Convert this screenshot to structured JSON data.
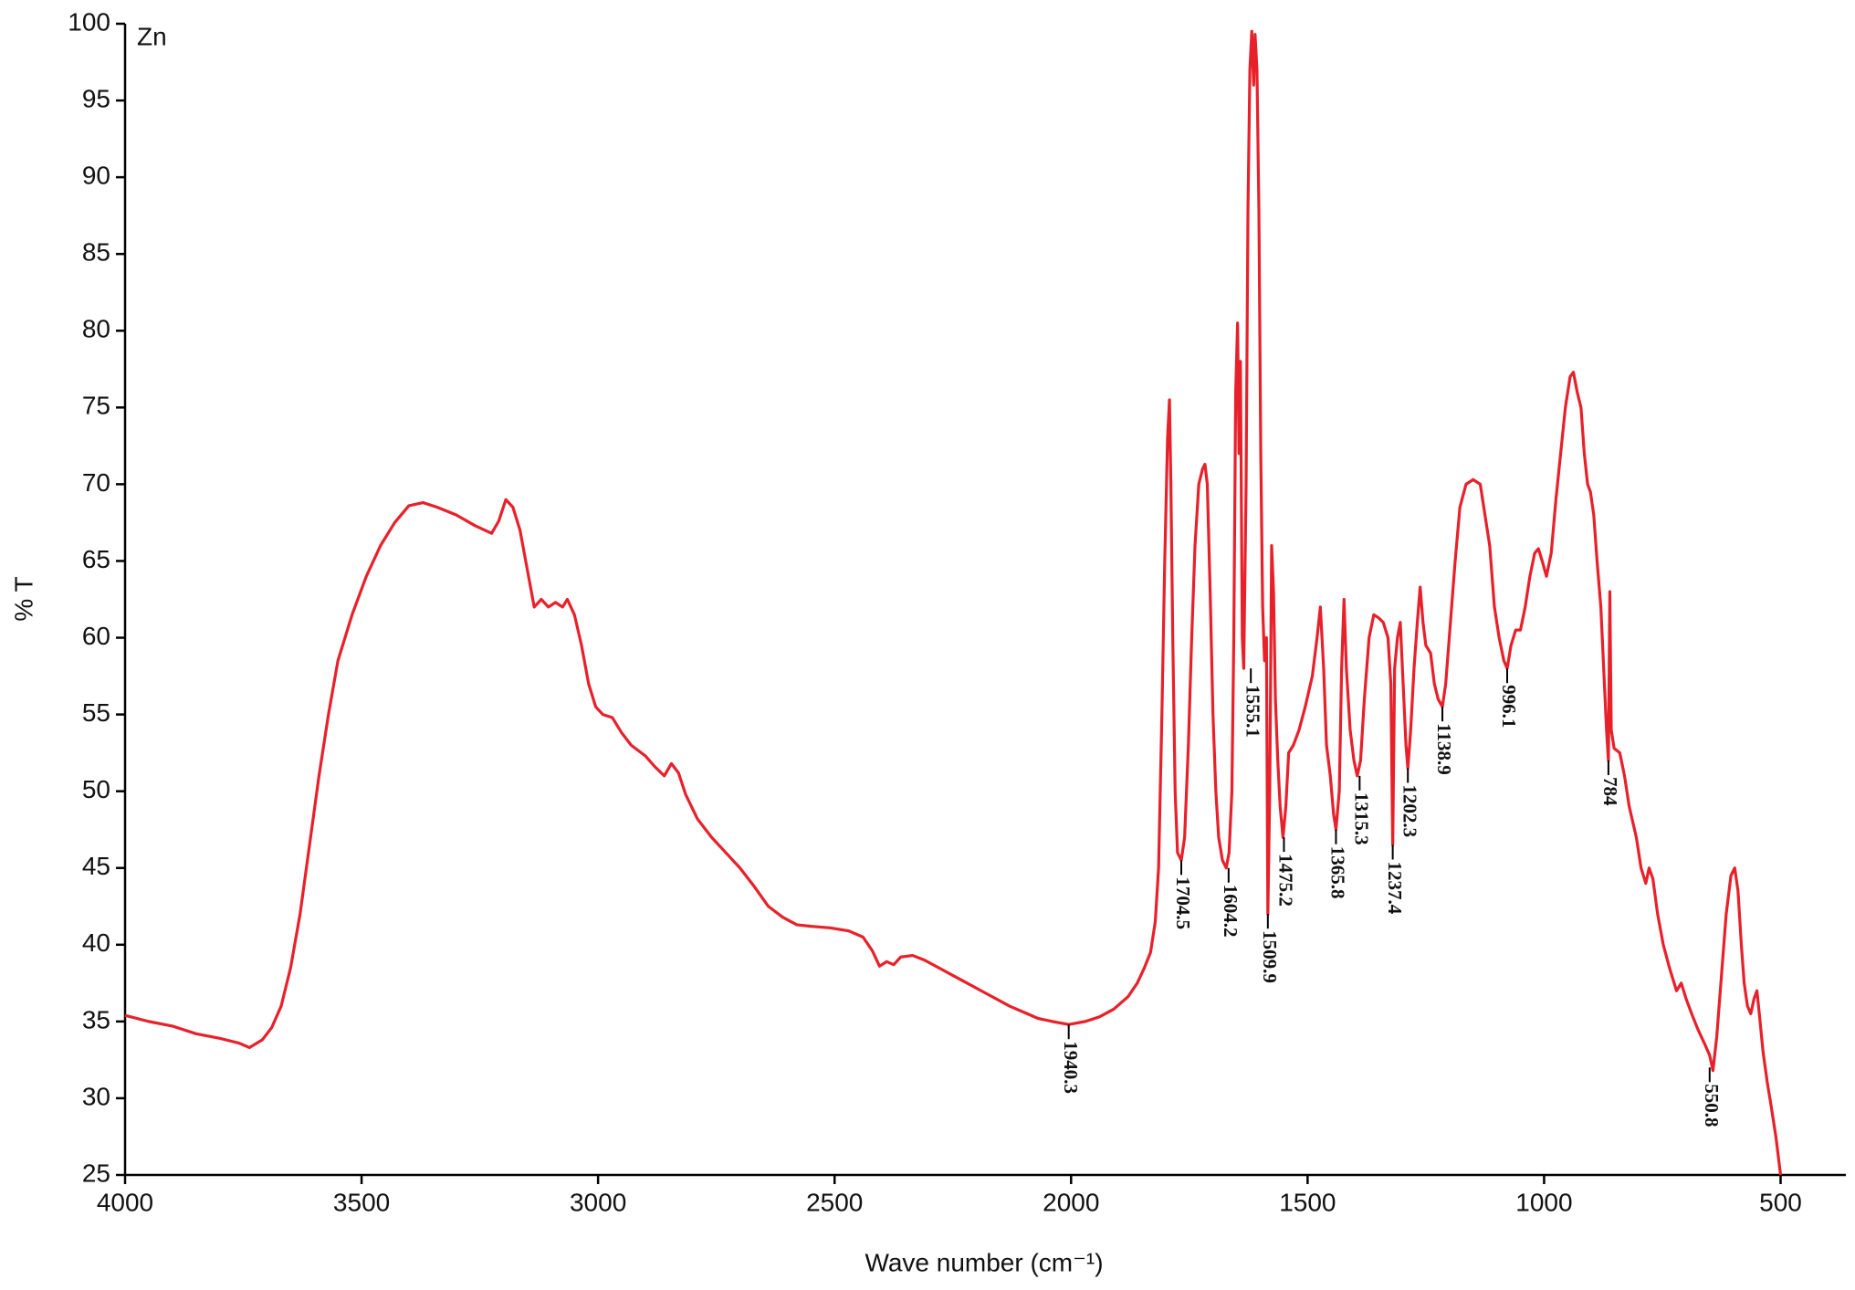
{
  "chart_data": {
    "type": "line",
    "title": "Zn",
    "x_label": "Wave number (cm⁻¹)",
    "y_label": "% T",
    "color": "#e8202a",
    "xlim": [
      4000,
      362
    ],
    "ylim": [
      25,
      100
    ],
    "xticks": [
      4000,
      3500,
      3000,
      2500,
      2000,
      1500,
      1000,
      500
    ],
    "yticks": [
      25,
      30,
      35,
      40,
      45,
      50,
      55,
      60,
      65,
      70,
      75,
      80,
      85,
      90,
      95,
      100
    ],
    "x": [
      4000,
      3950,
      3900,
      3850,
      3800,
      3760,
      3737,
      3710,
      3690,
      3670,
      3650,
      3630,
      3610,
      3590,
      3570,
      3550,
      3520,
      3490,
      3460,
      3430,
      3400,
      3370,
      3340,
      3300,
      3260,
      3225,
      3210,
      3195,
      3180,
      3165,
      3150,
      3135,
      3120,
      3105,
      3090,
      3075,
      3065,
      3050,
      3035,
      3020,
      3005,
      2990,
      2970,
      2950,
      2930,
      2900,
      2880,
      2860,
      2845,
      2830,
      2815,
      2790,
      2760,
      2730,
      2700,
      2670,
      2640,
      2610,
      2580,
      2550,
      2510,
      2470,
      2440,
      2420,
      2405,
      2390,
      2375,
      2360,
      2335,
      2310,
      2280,
      2250,
      2220,
      2190,
      2160,
      2130,
      2100,
      2070,
      2040,
      2005,
      1970,
      1940,
      1910,
      1880,
      1860,
      1845,
      1832,
      1822,
      1815,
      1808,
      1802,
      1796,
      1792,
      1789,
      1785,
      1780,
      1775,
      1767,
      1760,
      1752,
      1745,
      1738,
      1730,
      1722,
      1717,
      1712,
      1706,
      1700,
      1694,
      1688,
      1680,
      1672,
      1666,
      1660,
      1656,
      1652,
      1648,
      1645,
      1642,
      1638,
      1635,
      1630,
      1626,
      1622,
      1618,
      1614,
      1611,
      1607,
      1603,
      1599,
      1595,
      1591,
      1587,
      1584,
      1580,
      1576,
      1572,
      1568,
      1563,
      1558,
      1552,
      1546,
      1540,
      1530,
      1518,
      1505,
      1490,
      1480,
      1473,
      1466,
      1460,
      1452,
      1445,
      1440,
      1433,
      1428,
      1423,
      1418,
      1410,
      1402,
      1395,
      1388,
      1380,
      1370,
      1360,
      1350,
      1340,
      1330,
      1324,
      1320,
      1316,
      1310,
      1304,
      1298,
      1292,
      1288,
      1282,
      1275,
      1268,
      1262,
      1256,
      1250,
      1240,
      1232,
      1224,
      1215,
      1208,
      1198,
      1188,
      1178,
      1165,
      1150,
      1135,
      1125,
      1115,
      1105,
      1095,
      1085,
      1078,
      1070,
      1060,
      1050,
      1040,
      1030,
      1020,
      1012,
      1004,
      995,
      985,
      975,
      965,
      955,
      945,
      938,
      930,
      922,
      915,
      908,
      902,
      895,
      888,
      880,
      874,
      868,
      864,
      861,
      858,
      852,
      840,
      830,
      820,
      805,
      795,
      785,
      778,
      770,
      760,
      748,
      735,
      720,
      710,
      700,
      688,
      675,
      660,
      650,
      643,
      635,
      625,
      615,
      605,
      597,
      590,
      583,
      577,
      570,
      563,
      556,
      550,
      545,
      537,
      528,
      520,
      510,
      500
    ],
    "values": [
      35.4,
      35.0,
      34.7,
      34.2,
      33.9,
      33.6,
      33.3,
      33.8,
      34.6,
      36,
      38.5,
      42,
      46.5,
      51,
      55,
      58.5,
      61.5,
      64,
      66,
      67.5,
      68.6,
      68.8,
      68.5,
      68,
      67.3,
      66.8,
      67.6,
      69,
      68.5,
      67,
      64.5,
      62,
      62.5,
      62,
      62.3,
      62,
      62.5,
      61.5,
      59.5,
      57,
      55.5,
      55,
      54.8,
      53.8,
      53,
      52.3,
      51.6,
      51,
      51.8,
      51.2,
      49.8,
      48.2,
      47,
      46,
      45,
      43.8,
      42.5,
      41.8,
      41.3,
      41.2,
      41.1,
      40.9,
      40.5,
      39.6,
      38.6,
      38.9,
      38.7,
      39.2,
      39.3,
      39,
      38.5,
      38,
      37.5,
      37,
      36.5,
      36,
      35.6,
      35.2,
      35,
      34.8,
      35,
      35.3,
      35.8,
      36.6,
      37.5,
      38.5,
      39.5,
      41.5,
      45,
      55,
      65,
      73,
      75.5,
      70,
      60,
      50,
      46,
      45.5,
      47,
      53,
      60,
      66,
      70,
      71,
      71.3,
      70,
      63,
      55,
      50,
      47,
      45.5,
      45,
      46,
      50,
      60,
      76,
      80.5,
      72,
      78,
      60,
      58,
      70,
      88,
      97,
      99.5,
      96,
      99.3,
      97,
      88,
      72,
      62,
      58.5,
      60,
      42,
      50,
      66,
      63,
      56,
      52,
      49,
      47,
      49,
      52.5,
      53,
      54,
      55.5,
      57.5,
      60,
      62,
      58,
      53,
      51,
      48.5,
      47.5,
      50,
      58,
      62.5,
      58,
      54,
      52,
      51,
      52,
      56,
      60,
      61.5,
      61.3,
      61,
      60,
      57,
      46.5,
      58,
      60,
      61,
      57,
      53,
      51.5,
      54,
      58,
      61,
      63.3,
      61,
      59.5,
      59,
      57,
      56,
      55.5,
      57,
      61,
      65,
      68.5,
      70,
      70.3,
      70,
      68,
      66,
      62,
      60,
      58.5,
      58,
      59.5,
      60.5,
      60.5,
      62,
      64,
      65.5,
      65.8,
      65,
      64,
      65.5,
      69,
      72,
      75,
      77,
      77.3,
      76,
      75,
      72,
      70,
      69.5,
      68,
      65,
      62,
      58,
      54,
      52,
      63,
      54,
      52.8,
      52.5,
      51,
      49,
      47,
      45,
      44,
      45,
      44.3,
      42,
      40,
      38.5,
      37,
      37.5,
      36.5,
      35.5,
      34.5,
      33.5,
      32.8,
      31.8,
      34,
      38,
      42,
      44.5,
      45,
      43.5,
      40,
      37.5,
      36,
      35.5,
      36.5,
      37,
      35.5,
      33,
      31,
      29.5,
      27.5,
      25
    ],
    "annotations": [
      {
        "text": "1940.3",
        "x": 2005,
        "y": 34.8
      },
      {
        "text": "1704.5",
        "x": 1767,
        "y": 45.5
      },
      {
        "text": "1604.2",
        "x": 1667,
        "y": 45
      },
      {
        "text": "1555.1",
        "x": 1620,
        "y": 58
      },
      {
        "text": "1509.9",
        "x": 1584,
        "y": 42
      },
      {
        "text": "1475.2",
        "x": 1550,
        "y": 47
      },
      {
        "text": "1365.8",
        "x": 1440,
        "y": 47.5
      },
      {
        "text": "1315.3",
        "x": 1390,
        "y": 51
      },
      {
        "text": "1237.4",
        "x": 1320,
        "y": 46.5
      },
      {
        "text": "1202.3",
        "x": 1288,
        "y": 51.5
      },
      {
        "text": "1138.9",
        "x": 1215,
        "y": 55.5
      },
      {
        "text": "996.1",
        "x": 1078,
        "y": 58
      },
      {
        "text": "784",
        "x": 864,
        "y": 52
      },
      {
        "text": "550.8",
        "x": 650,
        "y": 32
      }
    ]
  }
}
